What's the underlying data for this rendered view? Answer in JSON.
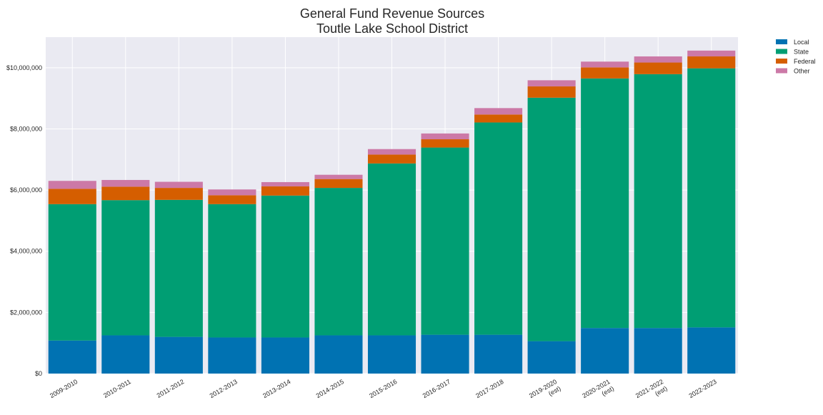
{
  "chart_data": {
    "type": "bar",
    "stacked": true,
    "title": [
      "General Fund Revenue Sources",
      "Toutle Lake School District"
    ],
    "xlabel": "",
    "ylabel": "",
    "categories": [
      [
        "2009-2010"
      ],
      [
        "2010-2011"
      ],
      [
        "2011-2012"
      ],
      [
        "2012-2013"
      ],
      [
        "2013-2014"
      ],
      [
        "2014-2015"
      ],
      [
        "2015-2016"
      ],
      [
        "2016-2017"
      ],
      [
        "2017-2018"
      ],
      [
        "2019-2020",
        "(est)"
      ],
      [
        "2020-2021",
        "(est)"
      ],
      [
        "2021-2022",
        "(est)"
      ],
      [
        "2022-2023"
      ]
    ],
    "series": [
      {
        "name": "Local",
        "color": "#0072b2",
        "values": [
          1080000,
          1250000,
          1200000,
          1180000,
          1180000,
          1250000,
          1250000,
          1270000,
          1270000,
          1060000,
          1490000,
          1490000,
          1510000
        ]
      },
      {
        "name": "State",
        "color": "#009e73",
        "values": [
          4460000,
          4420000,
          4480000,
          4360000,
          4640000,
          4820000,
          5620000,
          6120000,
          6940000,
          7960000,
          8160000,
          8300000,
          8470000
        ]
      },
      {
        "name": "Federal",
        "color": "#d55e00",
        "values": [
          500000,
          440000,
          390000,
          290000,
          300000,
          290000,
          290000,
          270000,
          260000,
          370000,
          360000,
          380000,
          390000
        ]
      },
      {
        "name": "Other",
        "color": "#cc79a7",
        "values": [
          260000,
          220000,
          200000,
          190000,
          140000,
          140000,
          180000,
          190000,
          210000,
          200000,
          190000,
          200000,
          190000
        ]
      }
    ],
    "ylim": [
      0,
      11000000
    ],
    "yticks": [
      0,
      2000000,
      4000000,
      6000000,
      8000000,
      10000000
    ],
    "ytick_labels": [
      "$0",
      "$2,000,000",
      "$4,000,000",
      "$6,000,000",
      "$8,000,000",
      "$10,000,000"
    ],
    "grid": true,
    "background": "#eaeaf2",
    "legend_position": "outside-top-right"
  }
}
